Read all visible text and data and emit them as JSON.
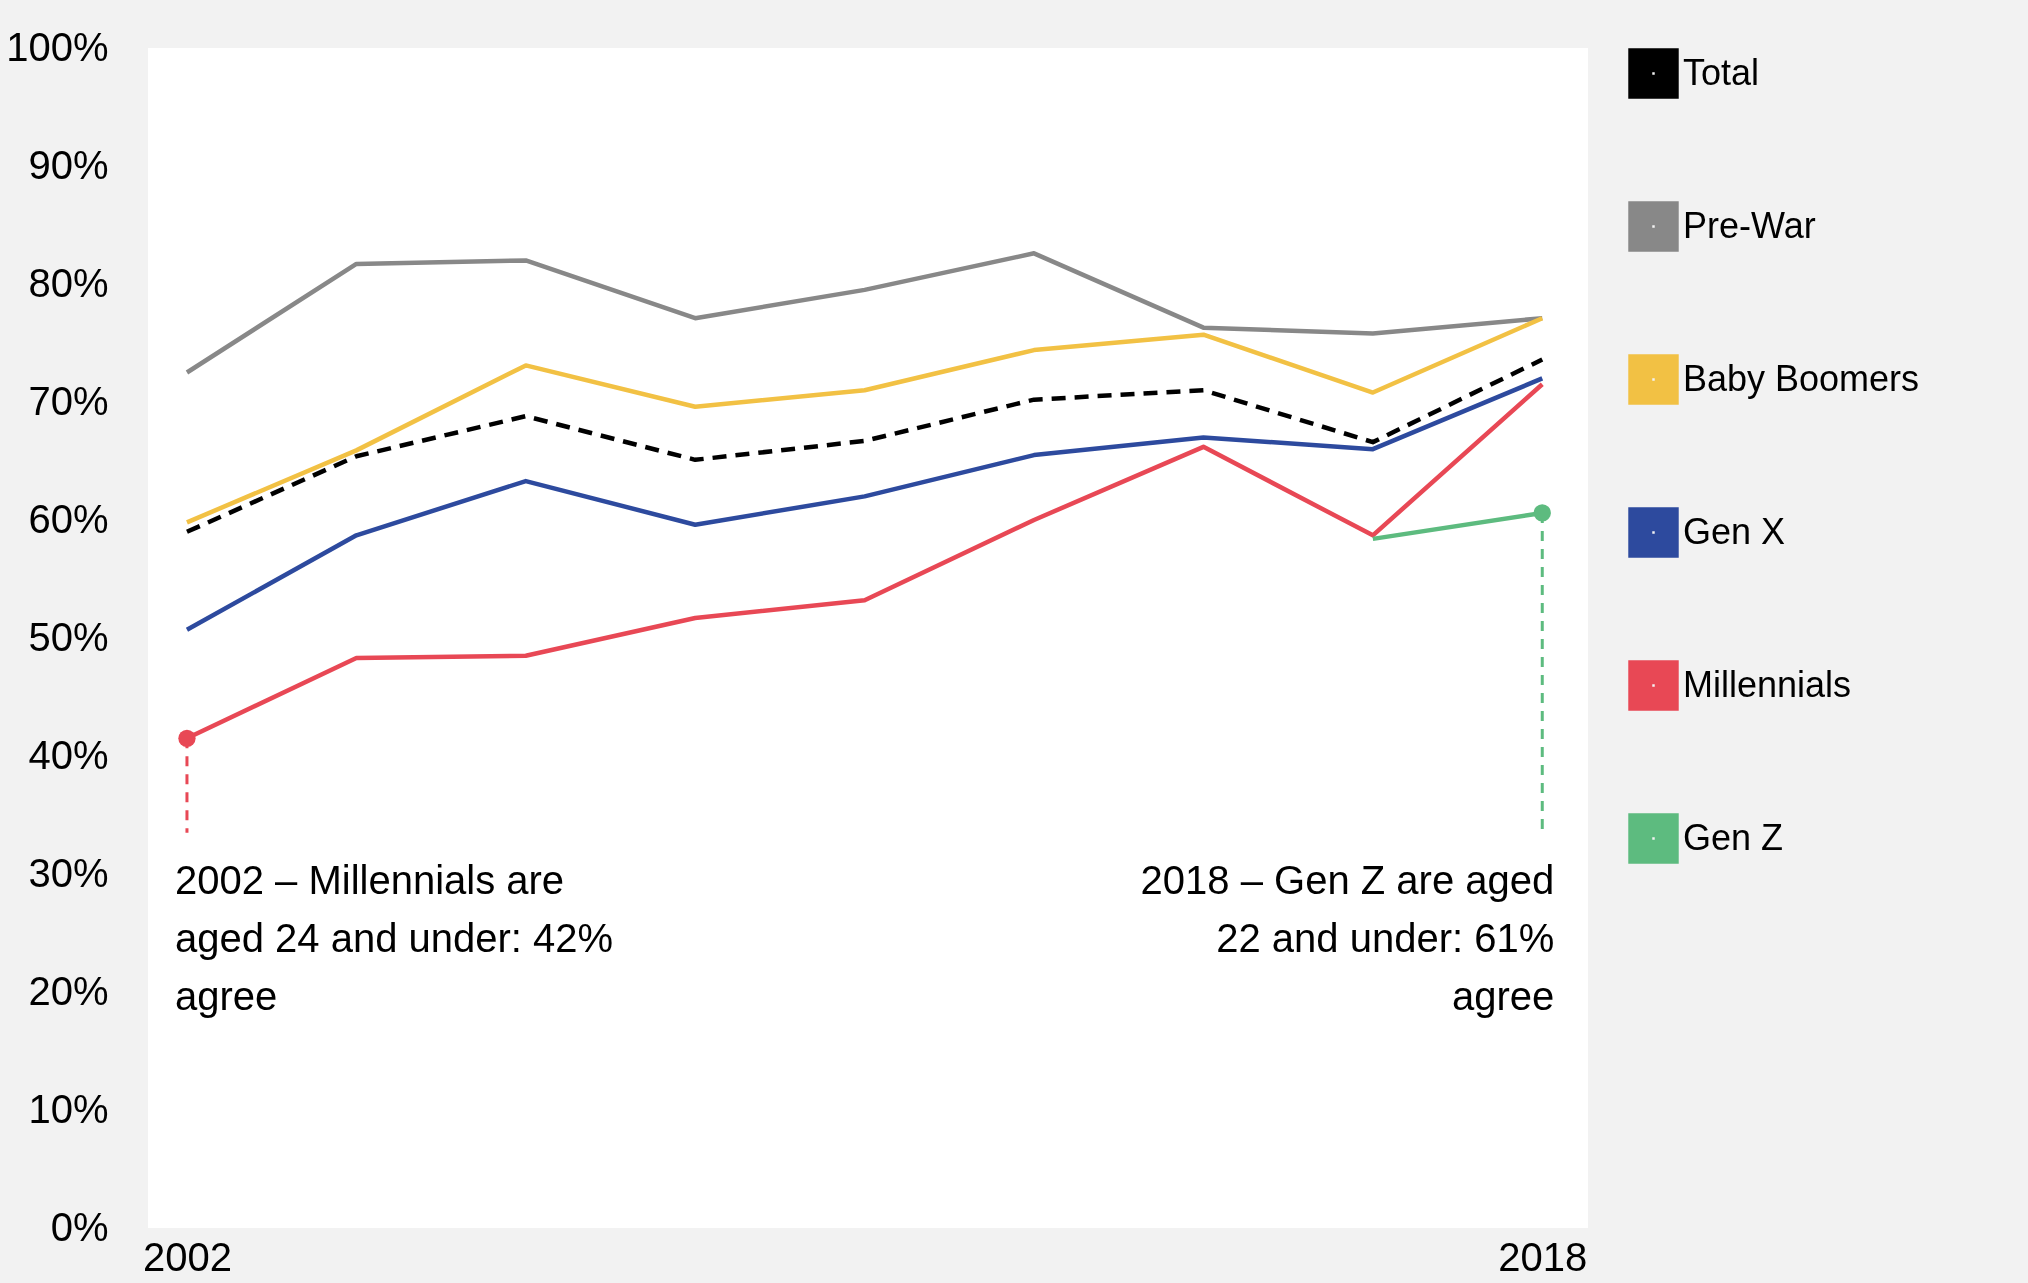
{
  "chart_data": {
    "type": "line",
    "x": [
      2002,
      2004,
      2006,
      2008,
      2010,
      2012,
      2014,
      2016,
      2018
    ],
    "series": [
      {
        "name": "Total",
        "color": "#000000",
        "line_style": "dashed",
        "values": [
          59.0,
          65.4,
          68.8,
          65.1,
          66.7,
          70.2,
          71.0,
          66.6,
          73.6
        ]
      },
      {
        "name": "Pre-War",
        "color": "#888888",
        "values": [
          72.5,
          81.7,
          82.0,
          77.1,
          79.5,
          82.6,
          76.3,
          75.8,
          77.1
        ]
      },
      {
        "name": "Baby Boomers",
        "color": "#f2c144",
        "values": [
          59.8,
          65.9,
          73.1,
          69.6,
          71.0,
          74.4,
          75.7,
          70.8,
          77.1
        ]
      },
      {
        "name": "Gen X",
        "color": "#2d4a9e",
        "values": [
          50.7,
          58.7,
          63.3,
          59.6,
          62.0,
          65.5,
          67.0,
          66.0,
          72.0
        ]
      },
      {
        "name": "Millennials",
        "color": "#e84855",
        "values": [
          41.5,
          48.3,
          48.5,
          51.7,
          53.2,
          60.0,
          66.2,
          58.7,
          71.5
        ]
      },
      {
        "name": "Gen Z",
        "color": "#5dbb7f",
        "values": [
          null,
          null,
          null,
          null,
          null,
          null,
          null,
          58.4,
          60.6
        ]
      }
    ],
    "xlim": [
      2001.54,
      2018.54
    ],
    "xticks": [
      2002,
      2018
    ],
    "ylim": [
      0,
      100
    ],
    "yticks": [
      {
        "value": 0,
        "label": "0%"
      },
      {
        "value": 10,
        "label": "10%"
      },
      {
        "value": 20,
        "label": "20%"
      },
      {
        "value": 30,
        "label": "30%"
      },
      {
        "value": 40,
        "label": "40%"
      },
      {
        "value": 50,
        "label": "50%"
      },
      {
        "value": 60,
        "label": "60%"
      },
      {
        "value": 70,
        "label": "70%"
      },
      {
        "value": 80,
        "label": "80%"
      },
      {
        "value": 90,
        "label": "90%"
      },
      {
        "value": 100,
        "label": "100%"
      }
    ],
    "annotations": [
      {
        "text": "2002 – Millennials are aged 24 and under: 42% agree",
        "x": 2002,
        "y": 41.5
      },
      {
        "text": "2018 – Gen Z are aged 22 and under: 61% agree",
        "x": 2018,
        "y": 60.6
      }
    ],
    "legend": "right",
    "grid": false,
    "line_style": "solid"
  }
}
